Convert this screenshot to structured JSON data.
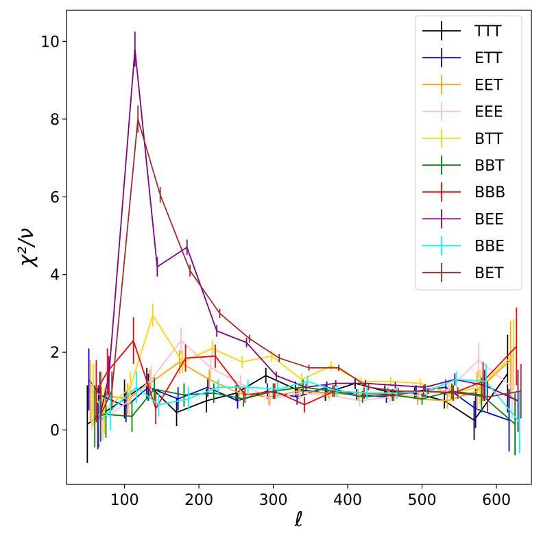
{
  "chart_data": {
    "type": "line",
    "title": "",
    "xlabel": "ℓ",
    "ylabel": "χ²/ν",
    "xlim": [
      22,
      647
    ],
    "ylim": [
      -1.4,
      10.8
    ],
    "xticks": [
      100,
      200,
      300,
      400,
      500,
      600
    ],
    "yticks": [
      0,
      2,
      4,
      6,
      8,
      10
    ],
    "xtick_labels": [
      "100",
      "200",
      "300",
      "400",
      "500",
      "600"
    ],
    "ytick_labels": [
      "0",
      "2",
      "4",
      "6",
      "8",
      "10"
    ],
    "grid": false,
    "legend_position": "top-right",
    "series": [
      {
        "name": "TTT",
        "color": "#000000",
        "x": [
          50,
          65,
          100,
          130,
          170,
          210,
          250,
          290,
          330,
          370,
          410,
          450,
          490,
          530,
          570,
          615
        ],
        "y": [
          0.15,
          0.35,
          0.8,
          1.2,
          0.45,
          0.75,
          0.95,
          1.4,
          1.05,
          0.95,
          1.2,
          1.0,
          0.95,
          0.75,
          0.25,
          1.45
        ],
        "err": [
          1.0,
          0.8,
          0.5,
          0.4,
          0.35,
          0.3,
          0.2,
          0.2,
          0.2,
          0.2,
          0.15,
          0.15,
          0.15,
          0.2,
          0.5,
          1.0
        ]
      },
      {
        "name": "ETT",
        "color": "#0000ff",
        "x": [
          52,
          67,
          102,
          132,
          172,
          212,
          252,
          292,
          332,
          372,
          412,
          452,
          492,
          532,
          572,
          617
        ],
        "y": [
          1.3,
          0.9,
          0.6,
          1.1,
          0.8,
          1.1,
          0.75,
          1.0,
          0.85,
          1.1,
          0.9,
          0.85,
          1.0,
          1.1,
          0.55,
          0.25
        ],
        "err": [
          0.8,
          0.6,
          0.4,
          0.35,
          0.3,
          0.25,
          0.2,
          0.2,
          0.2,
          0.15,
          0.15,
          0.15,
          0.15,
          0.2,
          0.5,
          0.8
        ]
      },
      {
        "name": "EET",
        "color": "#ffa500",
        "x": [
          54,
          69,
          104,
          134,
          174,
          214,
          254,
          294,
          334,
          374,
          414,
          454,
          494,
          534,
          574,
          619
        ],
        "y": [
          1.0,
          0.9,
          0.8,
          1.2,
          1.75,
          1.3,
          0.95,
          0.85,
          1.0,
          0.95,
          0.9,
          0.95,
          0.8,
          0.75,
          1.0,
          1.8
        ],
        "err": [
          0.8,
          0.6,
          0.4,
          0.35,
          0.3,
          0.25,
          0.2,
          0.2,
          0.2,
          0.15,
          0.15,
          0.15,
          0.15,
          0.2,
          0.5,
          1.0
        ]
      },
      {
        "name": "EEE",
        "color": "#ffc0cb",
        "x": [
          56,
          71,
          106,
          136,
          176,
          216,
          256,
          296,
          336,
          376,
          416,
          456,
          496,
          536,
          576,
          621
        ],
        "y": [
          0.6,
          0.25,
          0.75,
          1.3,
          2.3,
          1.6,
          1.2,
          0.8,
          0.95,
          0.9,
          0.75,
          0.85,
          0.9,
          1.05,
          1.8,
          1.1
        ],
        "err": [
          0.6,
          0.5,
          0.4,
          0.35,
          0.35,
          0.3,
          0.2,
          0.2,
          0.2,
          0.15,
          0.15,
          0.15,
          0.15,
          0.2,
          0.45,
          0.8
        ]
      },
      {
        "name": "BTT",
        "color": "#ffd700",
        "x": [
          58,
          73,
          108,
          138,
          178,
          218,
          258,
          298,
          338,
          378,
          418,
          458,
          498,
          538,
          578,
          623
        ],
        "y": [
          0.9,
          0.5,
          1.1,
          2.95,
          1.75,
          2.1,
          1.75,
          1.9,
          1.3,
          1.65,
          1.25,
          1.25,
          1.2,
          0.95,
          1.1,
          1.95
        ],
        "err": [
          0.8,
          0.6,
          0.4,
          0.3,
          0.3,
          0.2,
          0.15,
          0.15,
          0.15,
          0.12,
          0.12,
          0.12,
          0.12,
          0.2,
          0.45,
          0.9
        ]
      },
      {
        "name": "BBT",
        "color": "#008000",
        "x": [
          60,
          75,
          110,
          140,
          180,
          220,
          260,
          300,
          340,
          380,
          420,
          460,
          500,
          540,
          580,
          625
        ],
        "y": [
          0.35,
          0.4,
          0.35,
          1.05,
          0.9,
          0.95,
          0.8,
          1.0,
          1.1,
          1.0,
          0.85,
          0.9,
          0.8,
          1.0,
          0.9,
          0.15
        ],
        "err": [
          0.8,
          0.6,
          0.4,
          0.3,
          0.3,
          0.25,
          0.2,
          0.2,
          0.2,
          0.15,
          0.15,
          0.15,
          0.15,
          0.2,
          0.45,
          0.8
        ]
      },
      {
        "name": "BBB",
        "color": "#ff0000",
        "x": [
          62,
          77,
          112,
          142,
          182,
          222,
          262,
          302,
          342,
          382,
          422,
          462,
          502,
          542,
          582,
          627
        ],
        "y": [
          1.0,
          1.5,
          2.3,
          0.55,
          1.85,
          1.9,
          0.9,
          1.0,
          0.65,
          1.0,
          0.95,
          0.9,
          1.0,
          0.95,
          1.25,
          2.15
        ],
        "err": [
          0.8,
          0.6,
          0.6,
          0.4,
          0.35,
          0.3,
          0.2,
          0.2,
          0.2,
          0.15,
          0.15,
          0.15,
          0.15,
          0.2,
          0.5,
          1.0
        ]
      },
      {
        "name": "BEE",
        "color": "#800080",
        "x": [
          64,
          79,
          114,
          144,
          184,
          224,
          264,
          304,
          344,
          384,
          424,
          464,
          504,
          544,
          584,
          629
        ],
        "y": [
          0.1,
          1.4,
          9.8,
          4.2,
          4.7,
          2.55,
          2.25,
          1.4,
          1.1,
          1.2,
          1.2,
          1.15,
          1.1,
          1.3,
          1.15,
          0.75
        ],
        "err": [
          0.6,
          0.5,
          0.45,
          0.25,
          0.2,
          0.15,
          0.12,
          0.1,
          0.1,
          0.08,
          0.08,
          0.08,
          0.08,
          0.15,
          0.4,
          0.8
        ]
      },
      {
        "name": "BBE",
        "color": "#00ffff",
        "x": [
          66,
          81,
          116,
          146,
          186,
          226,
          266,
          306,
          346,
          386,
          426,
          466,
          506,
          546,
          586,
          631
        ],
        "y": [
          0.2,
          0.5,
          1.1,
          0.65,
          0.8,
          1.1,
          1.1,
          1.05,
          1.25,
          1.0,
          0.95,
          0.95,
          1.0,
          1.3,
          1.25,
          0.2
        ],
        "err": [
          0.6,
          0.5,
          0.4,
          0.3,
          0.3,
          0.2,
          0.2,
          0.2,
          0.15,
          0.15,
          0.15,
          0.15,
          0.15,
          0.2,
          0.45,
          0.8
        ]
      },
      {
        "name": "BET",
        "color": "#a52a2a",
        "x": [
          68,
          83,
          118,
          148,
          188,
          228,
          268,
          308,
          348,
          388,
          428,
          468,
          508,
          548,
          588,
          633
        ],
        "y": [
          0.4,
          1.0,
          8.0,
          6.05,
          4.1,
          3.0,
          2.35,
          1.85,
          1.6,
          1.6,
          1.1,
          1.0,
          1.0,
          0.95,
          0.85,
          1.0
        ],
        "err": [
          0.7,
          0.5,
          0.35,
          0.2,
          0.15,
          0.12,
          0.1,
          0.1,
          0.08,
          0.08,
          0.08,
          0.08,
          0.08,
          0.15,
          0.4,
          0.7
        ]
      }
    ]
  }
}
